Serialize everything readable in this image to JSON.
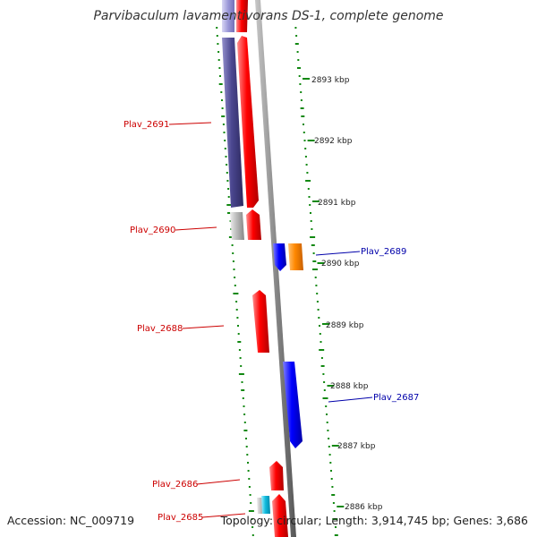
{
  "title": "Parvibaculum lavamentivorans DS-1, complete genome",
  "footer": {
    "accession": "Accession: NC_009719",
    "summary": "Topology: circular; Length: 3,914,745 bp; Genes: 3,686"
  },
  "colors": {
    "forward_gene": "#ff0000",
    "reverse_gene": "#0000ff",
    "reverse_label": "#0000aa",
    "forward_label": "#cc0000",
    "upper_reverse_gene": "#4b4790",
    "orange_gene": "#ff8800",
    "cyan_gene": "#11bbdd",
    "grey_gene": "#bbbbbb",
    "backbone": "#888888",
    "gc_dots": "#118811"
  },
  "kbp_ticks": [
    "2893 kbp",
    "2892 kbp",
    "2891 kbp",
    "2890 kbp",
    "2889 kbp",
    "2888 kbp",
    "2887 kbp",
    "2886 kbp"
  ],
  "gene_labels": [
    {
      "text": "Plav_2691",
      "strand": "forward"
    },
    {
      "text": "Plav_2690",
      "strand": "forward"
    },
    {
      "text": "Plav_2689",
      "strand": "reverse"
    },
    {
      "text": "Plav_2688",
      "strand": "forward"
    },
    {
      "text": "Plav_2687",
      "strand": "reverse"
    },
    {
      "text": "Plav_2686",
      "strand": "forward"
    },
    {
      "text": "Plav_2685",
      "strand": "forward"
    }
  ]
}
